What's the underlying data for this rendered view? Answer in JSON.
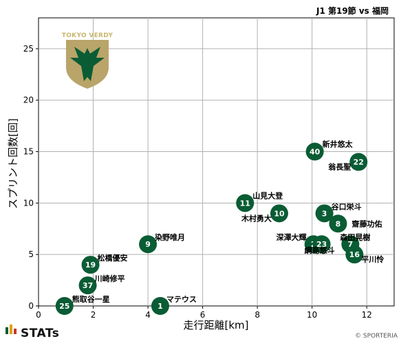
{
  "header": {
    "match_title": "J1 第19節 vs 福岡"
  },
  "branding": {
    "stats_logo": "STATs",
    "club_crest_text": "TOKYO VERDY",
    "copyright": "© SPORTERIA"
  },
  "colors": {
    "marker": "#0a5c34",
    "marker_text": "#ffffff",
    "crest_gold": "#b9a46a",
    "crest_green": "#0a5c34"
  },
  "chart_data": {
    "type": "scatter",
    "title": "J1 第19節 vs 福岡",
    "xlabel": "走行距離[km]",
    "ylabel": "スプリント回数[回]",
    "xlim": [
      0,
      13
    ],
    "ylim": [
      0,
      28
    ],
    "xticks": [
      0,
      2,
      4,
      6,
      8,
      10,
      12
    ],
    "yticks": [
      0,
      5,
      10,
      15,
      20,
      25
    ],
    "grid": true,
    "points": [
      {
        "number": "25",
        "name": "熊取谷一星",
        "x": 0.95,
        "y": 0
      },
      {
        "number": "1",
        "name": "マテウス",
        "x": 4.45,
        "y": 0
      },
      {
        "number": "37",
        "name": "川崎修平",
        "x": 1.8,
        "y": 2
      },
      {
        "number": "19",
        "name": "松橋優安",
        "x": 1.9,
        "y": 4
      },
      {
        "number": "9",
        "name": "染野唯月",
        "x": 4.0,
        "y": 6
      },
      {
        "number": "11",
        "name": "山見大登",
        "x": 7.55,
        "y": 10
      },
      {
        "number": "10",
        "name": "木村勇大",
        "x": 8.8,
        "y": 9
      },
      {
        "number": "40",
        "name": "新井悠太",
        "x": 10.1,
        "y": 15
      },
      {
        "number": "22",
        "name": "翁長聖",
        "x": 11.7,
        "y": 14
      },
      {
        "number": "3",
        "name": "谷口栄斗",
        "x": 10.45,
        "y": 9
      },
      {
        "number": "8",
        "name": "齋藤功佑",
        "x": 10.95,
        "y": 8
      },
      {
        "number": "2",
        "name": "深澤大輝",
        "x": 10.05,
        "y": 6
      },
      {
        "number": "23",
        "name": "綱島悠斗",
        "x": 10.35,
        "y": 6
      },
      {
        "number": "7",
        "name": "森田晃樹",
        "x": 11.4,
        "y": 6
      },
      {
        "number": "16",
        "name": "平川怜",
        "x": 11.55,
        "y": 5
      }
    ]
  }
}
